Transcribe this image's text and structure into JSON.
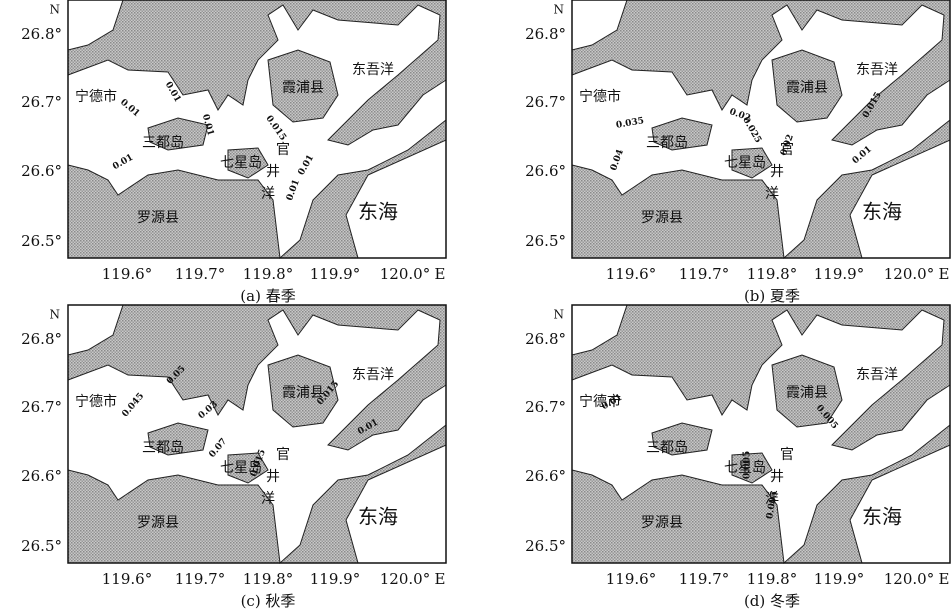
{
  "axes": {
    "north": "N",
    "east": "E",
    "lat_labels": [
      "26.8°",
      "26.7°",
      "26.6°",
      "26.5°"
    ],
    "lon_labels": [
      "119.6°",
      "119.7°",
      "119.8°",
      "119.9°",
      "120.0°"
    ]
  },
  "places": [
    "宁德市",
    "三都岛",
    "霞浦县",
    "东吾洋",
    "七星岛",
    "官",
    "井",
    "洋",
    "罗源县",
    "东海"
  ],
  "panels": [
    {
      "caption": "(a) 春季",
      "contours": [
        "0.01",
        "0.01",
        "0.01",
        "0.015",
        "0.01",
        "0.01",
        "0.01"
      ]
    },
    {
      "caption": "(b) 夏季",
      "contours": [
        "0.02",
        "0.035",
        "0.04",
        "0.025",
        "0.02",
        "0.015",
        "0.01"
      ]
    },
    {
      "caption": "(c) 秋季",
      "contours": [
        "0.05",
        "0.045",
        "0.03",
        "0.07",
        "0.015",
        "0.015",
        "0.01"
      ]
    },
    {
      "caption": "(d) 冬季",
      "contours": [
        "0.01",
        "0.005",
        "0.005",
        "0.005"
      ]
    }
  ]
}
